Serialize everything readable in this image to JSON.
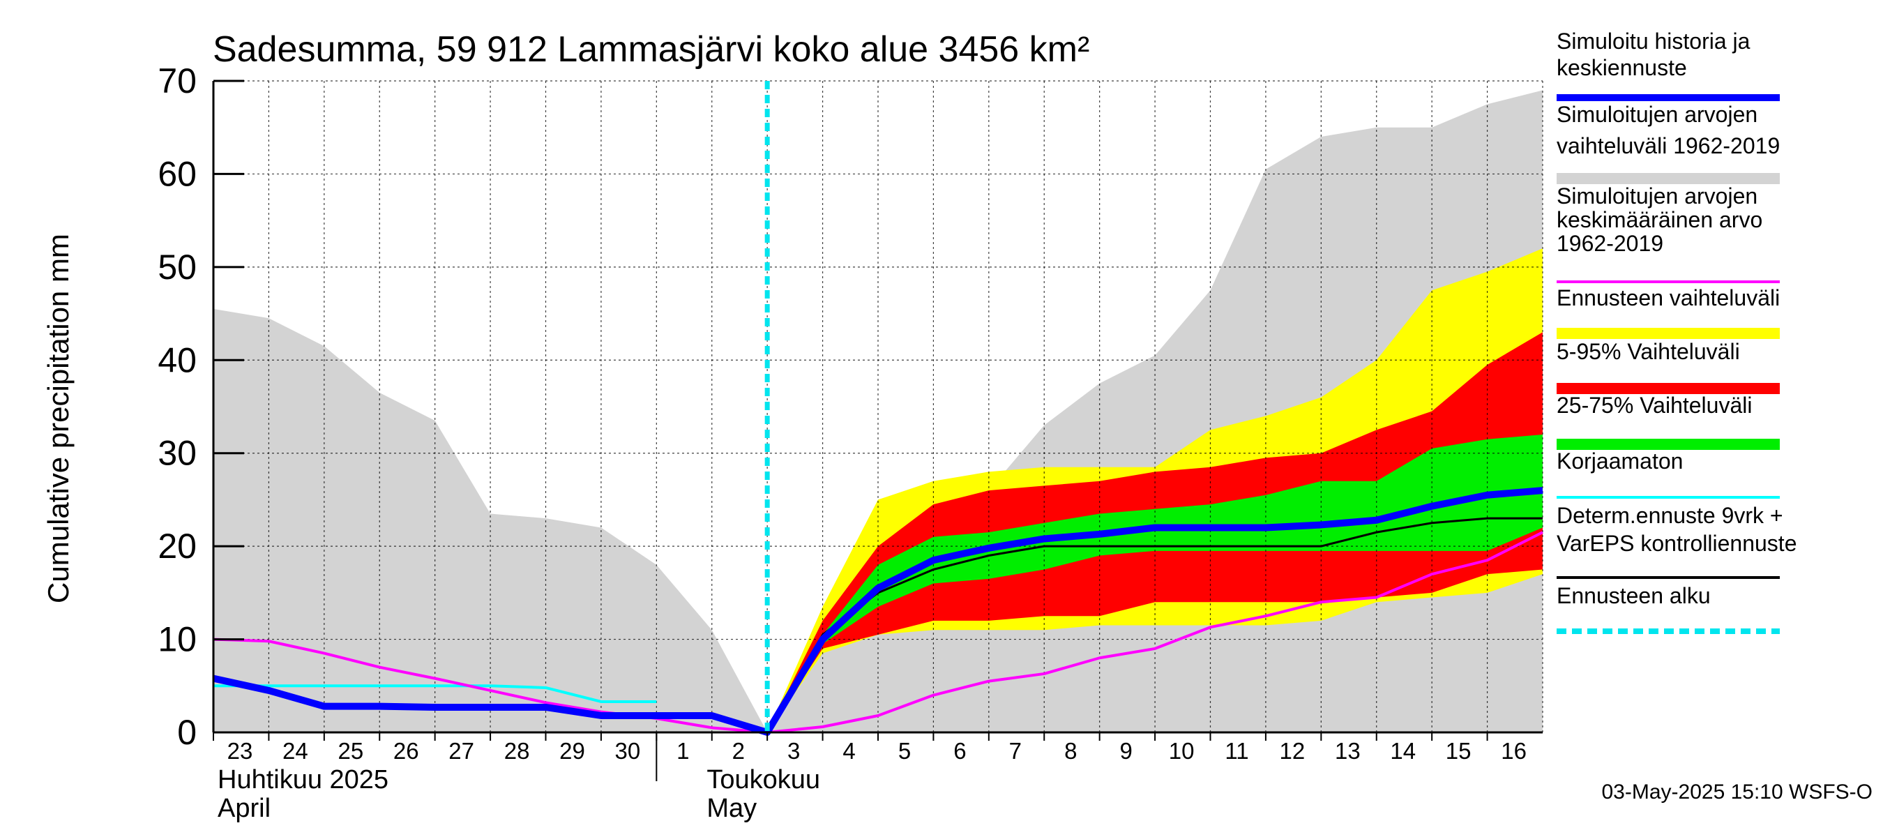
{
  "chart_data": {
    "type": "area",
    "title": "Sadesumma, 59 912 Lammasjärvi koko alue 3456 km²",
    "ylabel": "Cumulative precipitation   mm",
    "ylim": [
      0,
      70
    ],
    "yticks": [
      0,
      10,
      20,
      30,
      40,
      50,
      60,
      70
    ],
    "grid": true,
    "legend_position": "right",
    "x_labels": [
      "23",
      "24",
      "25",
      "26",
      "27",
      "28",
      "29",
      "30",
      "1",
      "2",
      "3",
      "4",
      "5",
      "6",
      "7",
      "8",
      "9",
      "10",
      "11",
      "12",
      "13",
      "14",
      "15",
      "16"
    ],
    "x_months": [
      {
        "line1": "Huhtikuu  2025",
        "line2": "April"
      },
      {
        "line1": "Toukokuu",
        "line2": "May"
      }
    ],
    "forecast_start": "2025-05-03",
    "series": [
      {
        "name": "Simuloitujen arvojen vaihteluväli 1962-2019",
        "kind": "band",
        "color": "#d3d3d3",
        "x": [
          "2025-04-23",
          "2025-04-24",
          "2025-04-25",
          "2025-04-26",
          "2025-04-27",
          "2025-04-28",
          "2025-04-29",
          "2025-04-30",
          "2025-05-01",
          "2025-05-02",
          "2025-05-03",
          "2025-05-04",
          "2025-05-05",
          "2025-05-06",
          "2025-05-07",
          "2025-05-08",
          "2025-05-09",
          "2025-05-10",
          "2025-05-11",
          "2025-05-12",
          "2025-05-13",
          "2025-05-14",
          "2025-05-15",
          "2025-05-16",
          "2025-05-17"
        ],
        "low": [
          0,
          0,
          0,
          0,
          0,
          0,
          0,
          0,
          0,
          0,
          0,
          0,
          0,
          0,
          0,
          0,
          0,
          0,
          0,
          0,
          0,
          0,
          0,
          0,
          0
        ],
        "high": [
          45.5,
          44.5,
          41.5,
          36.5,
          33.5,
          23.5,
          23,
          22,
          18,
          11,
          0,
          13,
          20,
          24.5,
          26,
          33,
          37.5,
          40.5,
          47.5,
          60.5,
          64,
          65,
          65,
          67.5,
          69
        ]
      },
      {
        "name": "Ennusteen vaihteluväli",
        "kind": "band",
        "color": "#ffff00",
        "x": [
          "2025-05-03",
          "2025-05-04",
          "2025-05-05",
          "2025-05-06",
          "2025-05-07",
          "2025-05-08",
          "2025-05-09",
          "2025-05-10",
          "2025-05-11",
          "2025-05-12",
          "2025-05-13",
          "2025-05-14",
          "2025-05-15",
          "2025-05-16",
          "2025-05-17"
        ],
        "low": [
          0,
          8.5,
          10.5,
          11,
          11,
          11,
          11.5,
          11.5,
          11.5,
          11.5,
          12,
          14,
          14.5,
          15,
          17
        ],
        "high": [
          0,
          13.5,
          25,
          27,
          28,
          28.5,
          28.5,
          28.5,
          32.5,
          34,
          36,
          40,
          47.5,
          49.5,
          52
        ]
      },
      {
        "name": "5-95% Vaihteluväli",
        "kind": "band",
        "color": "#ff0000",
        "x": [
          "2025-05-03",
          "2025-05-04",
          "2025-05-05",
          "2025-05-06",
          "2025-05-07",
          "2025-05-08",
          "2025-05-09",
          "2025-05-10",
          "2025-05-11",
          "2025-05-12",
          "2025-05-13",
          "2025-05-14",
          "2025-05-15",
          "2025-05-16",
          "2025-05-17"
        ],
        "low": [
          0,
          9,
          10.5,
          12,
          12,
          12.5,
          12.5,
          14,
          14,
          14,
          14,
          14.5,
          15,
          17,
          17.5
        ],
        "high": [
          0,
          12,
          20,
          24.5,
          26,
          26.5,
          27,
          28,
          28.5,
          29.5,
          30,
          32.5,
          34.5,
          39.5,
          43
        ]
      },
      {
        "name": "25-75% Vaihteluväli",
        "kind": "band",
        "color": "#00ee00",
        "x": [
          "2025-05-03",
          "2025-05-04",
          "2025-05-05",
          "2025-05-06",
          "2025-05-07",
          "2025-05-08",
          "2025-05-09",
          "2025-05-10",
          "2025-05-11",
          "2025-05-12",
          "2025-05-13",
          "2025-05-14",
          "2025-05-15",
          "2025-05-16",
          "2025-05-17"
        ],
        "low": [
          0,
          9.5,
          13.5,
          16,
          16.5,
          17.5,
          19,
          19.5,
          19.5,
          19.5,
          19.5,
          19.5,
          19.5,
          19.5,
          22
        ],
        "high": [
          0,
          10.5,
          18,
          21,
          21.5,
          22.5,
          23.5,
          24,
          24.5,
          25.5,
          27,
          27,
          30.5,
          31.5,
          32
        ]
      },
      {
        "name": "Simuloitujen arvojen keskimääräinen arvo 1962-2019",
        "kind": "line",
        "color": "#ff00ff",
        "x": [
          "2025-04-23",
          "2025-04-24",
          "2025-04-25",
          "2025-04-26",
          "2025-04-27",
          "2025-04-28",
          "2025-04-29",
          "2025-04-30",
          "2025-05-01",
          "2025-05-02",
          "2025-05-03",
          "2025-05-04",
          "2025-05-05",
          "2025-05-06",
          "2025-05-07",
          "2025-05-08",
          "2025-05-09",
          "2025-05-10",
          "2025-05-11",
          "2025-05-12",
          "2025-05-13",
          "2025-05-14",
          "2025-05-15",
          "2025-05-16",
          "2025-05-17"
        ],
        "values": [
          10,
          9.8,
          8.5,
          7,
          5.8,
          4.5,
          3.2,
          2.2,
          1.5,
          0.5,
          0,
          0.6,
          1.8,
          4,
          5.5,
          6.3,
          8,
          9,
          11.3,
          12.5,
          14,
          14.5,
          17,
          18.5,
          21.5
        ]
      },
      {
        "name": "Korjaamaton",
        "kind": "line",
        "color": "#00ffff",
        "x": [
          "2025-04-23",
          "2025-04-24",
          "2025-04-25",
          "2025-04-26",
          "2025-04-27",
          "2025-04-28",
          "2025-04-29",
          "2025-04-30",
          "2025-05-01"
        ],
        "values": [
          5,
          5,
          5,
          5,
          5,
          5,
          4.8,
          3.3,
          3.3
        ]
      },
      {
        "name": "Determ.ennuste 9vrk + VarEPS kontrolliennuste",
        "kind": "line",
        "color": "#000000",
        "x": [
          "2025-05-03",
          "2025-05-04",
          "2025-05-05",
          "2025-05-06",
          "2025-05-07",
          "2025-05-08",
          "2025-05-09",
          "2025-05-10",
          "2025-05-11",
          "2025-05-12",
          "2025-05-13",
          "2025-05-14",
          "2025-05-15",
          "2025-05-16",
          "2025-05-17"
        ],
        "values": [
          0,
          10.5,
          15,
          17.5,
          19,
          20,
          20,
          20,
          20,
          20,
          20,
          21.5,
          22.5,
          23,
          23
        ]
      },
      {
        "name": "Simuloitu historia ja keskiennuste",
        "kind": "line",
        "color": "#0000ff",
        "x": [
          "2025-04-23",
          "2025-04-24",
          "2025-04-25",
          "2025-04-26",
          "2025-04-27",
          "2025-04-28",
          "2025-04-29",
          "2025-04-30",
          "2025-05-01",
          "2025-05-02",
          "2025-05-03",
          "2025-05-04",
          "2025-05-05",
          "2025-05-06",
          "2025-05-07",
          "2025-05-08",
          "2025-05-09",
          "2025-05-10",
          "2025-05-11",
          "2025-05-12",
          "2025-05-13",
          "2025-05-14",
          "2025-05-15",
          "2025-05-16",
          "2025-05-17"
        ],
        "values": [
          5.8,
          4.5,
          2.8,
          2.8,
          2.7,
          2.7,
          2.7,
          1.8,
          1.8,
          1.8,
          0,
          10,
          15.5,
          18.5,
          19.8,
          20.8,
          21.3,
          22,
          22,
          22,
          22.3,
          22.8,
          24.3,
          25.5,
          26
        ]
      }
    ],
    "legend": [
      {
        "label": "Simuloitu historia ja\nkeskiennuste",
        "color": "#0000ff",
        "style": "line-thick"
      },
      {
        "label": "Simuloitujen arvojen\nvaihteluväli 1962-2019",
        "color": "#d3d3d3",
        "style": "band"
      },
      {
        "label": "Simuloitujen arvojen\nkeskimääräinen arvo\n   1962-2019",
        "color": "#ff00ff",
        "style": "line"
      },
      {
        "label": "Ennusteen vaihteluväli",
        "color": "#ffff00",
        "style": "band"
      },
      {
        "label": "5-95% Vaihteluväli",
        "color": "#ff0000",
        "style": "band"
      },
      {
        "label": "25-75% Vaihteluväli",
        "color": "#00ee00",
        "style": "band"
      },
      {
        "label": "Korjaamaton",
        "color": "#00ffff",
        "style": "line"
      },
      {
        "label": "Determ.ennuste 9vrk +\nVarEPS kontrolliennuste",
        "color": "#000000",
        "style": "line"
      },
      {
        "label": "Ennusteen alku",
        "color": "#00e5ee",
        "style": "dashed"
      }
    ]
  },
  "footer": {
    "timestamp": "03-May-2025 15:10 WSFS-O"
  }
}
